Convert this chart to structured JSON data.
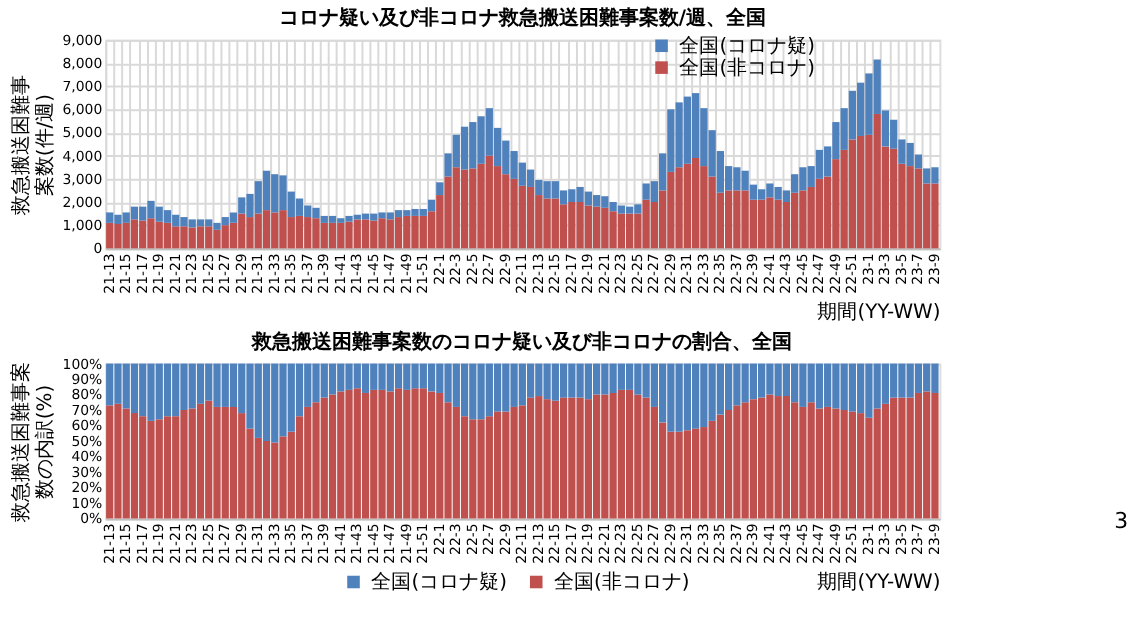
{
  "chart_data": [
    {
      "type": "bar",
      "stacked": true,
      "title": "コロナ疑い及び非コロナ救急搬送困難事案数/週、全国",
      "ylabel": "救急搬送困難事案数(件/週)",
      "xlabel": "期間(YY-WW)",
      "categories": [
        "21-13",
        null,
        "21-15",
        null,
        "21-17",
        null,
        "21-19",
        null,
        "21-21",
        null,
        "21-23",
        null,
        "21-25",
        null,
        "21-27",
        null,
        "21-29",
        null,
        "21-31",
        null,
        "21-33",
        null,
        "21-35",
        null,
        "21-37",
        null,
        "21-39",
        null,
        "21-41",
        null,
        "21-43",
        null,
        "21-45",
        null,
        "21-47",
        null,
        "21-49",
        null,
        "21-51",
        null,
        "22-1",
        null,
        "22-3",
        null,
        "22-5",
        null,
        "22-7",
        null,
        "22-9",
        null,
        "22-11",
        null,
        "22-13",
        null,
        "22-15",
        null,
        "22-17",
        null,
        "22-19",
        null,
        "22-21",
        null,
        "22-23",
        null,
        "22-25",
        null,
        "22-27",
        null,
        "22-29",
        null,
        "22-31",
        null,
        "22-33",
        null,
        "22-35",
        null,
        "22-37",
        null,
        "22-39",
        null,
        "22-41",
        null,
        "22-43",
        null,
        "22-45",
        null,
        "22-47",
        null,
        "22-49",
        null,
        "22-51",
        null,
        "23-1",
        null,
        "23-3",
        null,
        "23-5",
        null,
        "23-7",
        null,
        "23-9"
      ],
      "series": [
        {
          "name": "全国(非コロナ)",
          "color": "#c0504d",
          "values": [
            1100,
            1050,
            1100,
            1250,
            1200,
            1300,
            1150,
            1100,
            950,
            950,
            900,
            950,
            950,
            800,
            1000,
            1100,
            1500,
            1350,
            1500,
            1650,
            1550,
            1650,
            1350,
            1400,
            1350,
            1300,
            1100,
            1100,
            1100,
            1150,
            1250,
            1250,
            1200,
            1300,
            1250,
            1350,
            1400,
            1400,
            1400,
            1600,
            2300,
            3100,
            3500,
            3400,
            3450,
            3650,
            4000,
            3550,
            3200,
            3000,
            2700,
            2650,
            2300,
            2150,
            2150,
            1900,
            2000,
            2000,
            1850,
            1800,
            1750,
            1600,
            1500,
            1500,
            1500,
            2100,
            2000,
            2500,
            3300,
            3500,
            3650,
            3900,
            3550,
            3100,
            2400,
            2500,
            2500,
            2500,
            2100,
            2100,
            2200,
            2100,
            2000,
            2400,
            2500,
            2650,
            3000,
            3100,
            3850,
            4250,
            4700,
            4850,
            4900,
            5800,
            4400,
            4300,
            3650,
            3550,
            3450,
            2800,
            2800
          ]
        },
        {
          "name": "全国(コロナ疑)",
          "color": "#4f81bd",
          "values": [
            450,
            400,
            450,
            550,
            600,
            750,
            650,
            550,
            500,
            400,
            350,
            300,
            300,
            300,
            350,
            450,
            700,
            1000,
            1400,
            1700,
            1650,
            1500,
            1100,
            750,
            500,
            450,
            300,
            300,
            200,
            250,
            200,
            250,
            300,
            250,
            300,
            300,
            250,
            300,
            300,
            500,
            550,
            1000,
            1400,
            1850,
            2000,
            2050,
            2050,
            1650,
            1450,
            1200,
            1000,
            750,
            650,
            750,
            750,
            600,
            550,
            650,
            600,
            500,
            500,
            400,
            350,
            300,
            400,
            700,
            900,
            1600,
            2700,
            2800,
            2900,
            2800,
            2500,
            2000,
            1800,
            1050,
            1000,
            850,
            650,
            450,
            600,
            550,
            500,
            800,
            1000,
            900,
            1250,
            1300,
            1600,
            1800,
            2100,
            2300,
            2650,
            2350,
            1550,
            1250,
            1050,
            1000,
            600,
            650,
            700
          ]
        }
      ],
      "ylim": [
        0,
        9000
      ],
      "yticks": [
        0,
        {
          "value": 1000,
          "label": "1,000"
        },
        {
          "value": 2000,
          "label": "2,000"
        },
        {
          "value": 3000,
          "label": "3,000"
        },
        {
          "value": 4000,
          "label": "4,000"
        },
        {
          "value": 5000,
          "label": "5,000"
        },
        {
          "value": 6000,
          "label": "6,000"
        },
        {
          "value": 7000,
          "label": "7,000"
        },
        {
          "value": 8000,
          "label": "8,000"
        },
        {
          "value": 9000,
          "label": "9,000"
        }
      ],
      "grid": true,
      "legend": "top right"
    },
    {
      "type": "bar",
      "stacked": true,
      "title": "救急搬送困難事案数のコロナ疑い及び非コロナの割合、全国",
      "ylabel": "救急搬送困難事案数の内訳(%)",
      "xlabel": "期間(YY-WW)",
      "categories": [
        "21-13",
        null,
        "21-15",
        null,
        "21-17",
        null,
        "21-19",
        null,
        "21-21",
        null,
        "21-23",
        null,
        "21-25",
        null,
        "21-27",
        null,
        "21-29",
        null,
        "21-31",
        null,
        "21-33",
        null,
        "21-35",
        null,
        "21-37",
        null,
        "21-39",
        null,
        "21-41",
        null,
        "21-43",
        null,
        "21-45",
        null,
        "21-47",
        null,
        "21-49",
        null,
        "21-51",
        null,
        "22-1",
        null,
        "22-3",
        null,
        "22-5",
        null,
        "22-7",
        null,
        "22-9",
        null,
        "22-11",
        null,
        "22-13",
        null,
        "22-15",
        null,
        "22-17",
        null,
        "22-19",
        null,
        "22-21",
        null,
        "22-23",
        null,
        "22-25",
        null,
        "22-27",
        null,
        "22-29",
        null,
        "22-31",
        null,
        "22-33",
        null,
        "22-35",
        null,
        "22-37",
        null,
        "22-39",
        null,
        "22-41",
        null,
        "22-43",
        null,
        "22-45",
        null,
        "22-47",
        null,
        "22-49",
        null,
        "22-51",
        null,
        "23-1",
        null,
        "23-3",
        null,
        "23-5",
        null,
        "23-7",
        null,
        "23-9"
      ],
      "series": [
        {
          "name": "全国(非コロナ)",
          "color": "#c0504d",
          "values": [
            73,
            74,
            71,
            68,
            66,
            63,
            64,
            66,
            66,
            70,
            71,
            74,
            76,
            72,
            72,
            72,
            68,
            58,
            52,
            50,
            49,
            53,
            56,
            66,
            72,
            75,
            78,
            80,
            82,
            83,
            84,
            81,
            83,
            83,
            82,
            84,
            83,
            84,
            84,
            82,
            81,
            75,
            72,
            66,
            64,
            64,
            66,
            69,
            69,
            72,
            73,
            78,
            79,
            77,
            76,
            78,
            78,
            78,
            77,
            80,
            80,
            81,
            83,
            83,
            80,
            78,
            72,
            62,
            56,
            56,
            57,
            58,
            59,
            63,
            67,
            70,
            73,
            75,
            77,
            78,
            80,
            79,
            79,
            75,
            72,
            75,
            71,
            72,
            71,
            70,
            69,
            68,
            65,
            71,
            74,
            78,
            78,
            78,
            81,
            82,
            81
          ]
        },
        {
          "name": "全国(コロナ疑)",
          "color": "#4f81bd",
          "values": [
            27,
            26,
            29,
            32,
            34,
            37,
            36,
            34,
            34,
            30,
            29,
            26,
            24,
            28,
            28,
            28,
            32,
            42,
            48,
            50,
            51,
            47,
            44,
            34,
            28,
            25,
            22,
            20,
            18,
            17,
            16,
            19,
            17,
            17,
            18,
            16,
            17,
            16,
            16,
            18,
            19,
            25,
            28,
            34,
            36,
            36,
            34,
            31,
            31,
            28,
            27,
            22,
            21,
            23,
            24,
            22,
            22,
            22,
            23,
            20,
            20,
            19,
            17,
            17,
            20,
            22,
            28,
            38,
            44,
            44,
            43,
            42,
            41,
            37,
            33,
            30,
            27,
            25,
            23,
            22,
            20,
            21,
            21,
            25,
            28,
            25,
            29,
            28,
            29,
            30,
            31,
            32,
            35,
            29,
            26,
            22,
            22,
            22,
            19,
            18,
            19
          ]
        }
      ],
      "ylim": [
        0,
        100
      ],
      "yticks": [
        {
          "value": 0,
          "label": "0%"
        },
        {
          "value": 10,
          "label": "10%"
        },
        {
          "value": 20,
          "label": "20%"
        },
        {
          "value": 30,
          "label": "30%"
        },
        {
          "value": 40,
          "label": "40%"
        },
        {
          "value": 50,
          "label": "50%"
        },
        {
          "value": 60,
          "label": "60%"
        },
        {
          "value": 70,
          "label": "70%"
        },
        {
          "value": 80,
          "label": "80%"
        },
        {
          "value": 90,
          "label": "90%"
        },
        {
          "value": 100,
          "label": "100%"
        }
      ],
      "legend": "bottom right",
      "annotations": [
        "3"
      ]
    }
  ]
}
